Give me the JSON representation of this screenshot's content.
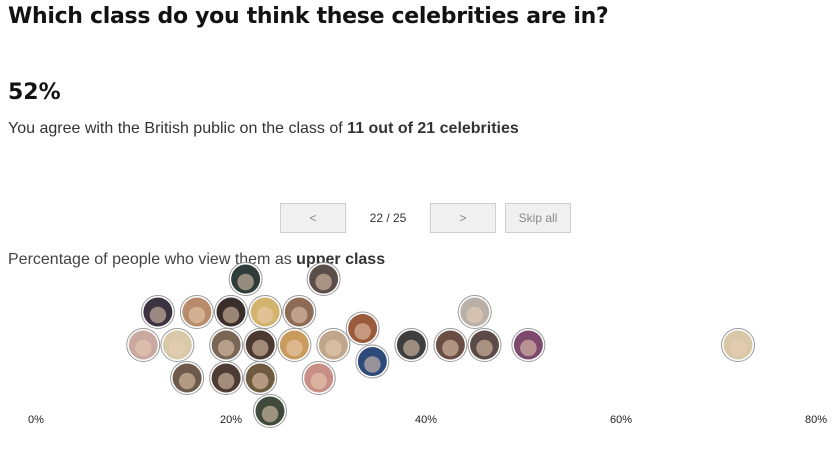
{
  "header": {
    "title": "Which class do you think these celebrities are in?"
  },
  "result": {
    "score": "52%",
    "text_prefix": "You agree with the British public on the class of ",
    "text_bold": "11 out of 21 celebrities"
  },
  "navigation": {
    "prev_label": "<",
    "counter": "22 / 25",
    "next_label": ">",
    "skip_label": "Skip all"
  },
  "chart_data": {
    "type": "scatter",
    "subtitle_prefix": "Percentage of people who view them as ",
    "subtitle_bold": "upper class",
    "xlim": [
      0,
      80
    ],
    "x_ticks": [
      "0%",
      "20%",
      "40%",
      "60%",
      "80%"
    ],
    "points": [
      {
        "x": 11.0,
        "color": "#c9a9a0"
      },
      {
        "x": 12.5,
        "color": "#3b3340"
      },
      {
        "x": 14.5,
        "color": "#d8c9a8"
      },
      {
        "x": 15.5,
        "color": "#6e5a4a"
      },
      {
        "x": 16.5,
        "color": "#b88c6b"
      },
      {
        "x": 19.5,
        "color": "#7a6654"
      },
      {
        "x": 19.5,
        "color": "#4c3c33"
      },
      {
        "x": 20.0,
        "color": "#3a2e2a"
      },
      {
        "x": 21.5,
        "color": "#2f3d3a"
      },
      {
        "x": 23.0,
        "color": "#4a3a30"
      },
      {
        "x": 23.0,
        "color": "#6d5a3f"
      },
      {
        "x": 23.5,
        "color": "#d2b46e"
      },
      {
        "x": 24.0,
        "color": "#3f4a3a"
      },
      {
        "x": 26.5,
        "color": "#c99c5e"
      },
      {
        "x": 27.0,
        "color": "#8e6b55"
      },
      {
        "x": 29.0,
        "color": "#c88f86"
      },
      {
        "x": 29.5,
        "color": "#5a4e48"
      },
      {
        "x": 30.5,
        "color": "#c0a68c"
      },
      {
        "x": 33.5,
        "color": "#9a5a3c"
      },
      {
        "x": 34.5,
        "color": "#2d4a7a"
      },
      {
        "x": 38.5,
        "color": "#3e3e3e"
      },
      {
        "x": 42.5,
        "color": "#6a4e44"
      },
      {
        "x": 45.0,
        "color": "#b9b1a8"
      },
      {
        "x": 46.0,
        "color": "#5c4a48"
      },
      {
        "x": 50.5,
        "color": "#7d4a6e"
      },
      {
        "x": 72.0,
        "color": "#d8c8a8"
      }
    ]
  }
}
